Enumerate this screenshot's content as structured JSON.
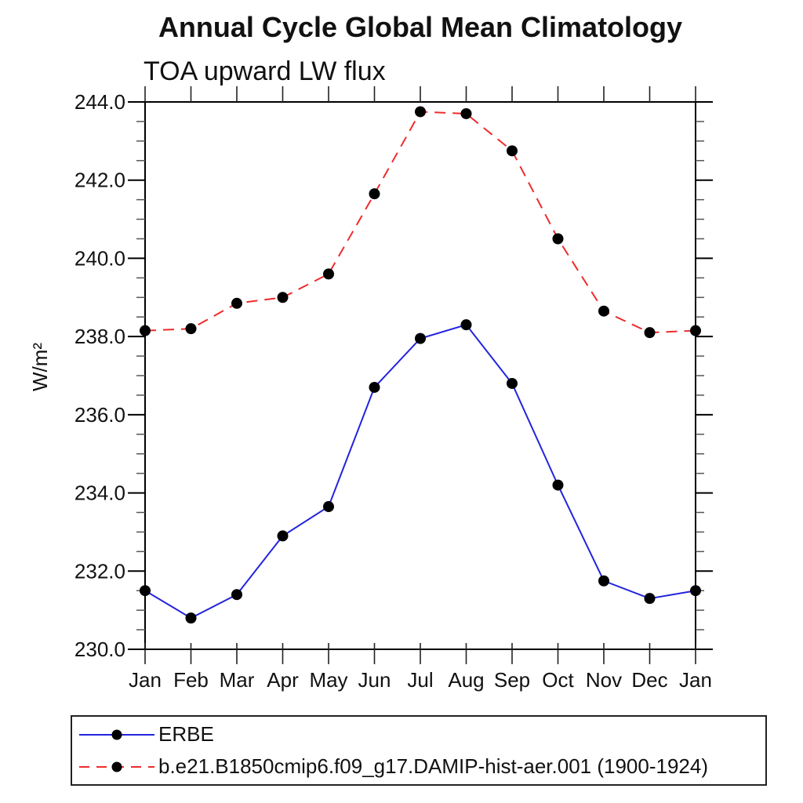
{
  "chart_data": {
    "type": "line",
    "title": "Annual Cycle Global Mean Climatology",
    "subtitle": "TOA upward LW flux",
    "categories": [
      "Jan",
      "Feb",
      "Mar",
      "Apr",
      "May",
      "Jun",
      "Jul",
      "Aug",
      "Sep",
      "Oct",
      "Nov",
      "Dec",
      "Jan"
    ],
    "y_axis": {
      "label": "W/m²",
      "min": 230.0,
      "max": 244.0,
      "major_step": 2.0,
      "minor_step": 0.5,
      "tick_labels": [
        "230.0",
        "232.0",
        "234.0",
        "236.0",
        "238.0",
        "240.0",
        "242.0",
        "244.0"
      ]
    },
    "grid": "off",
    "marker_color": "#000000",
    "series": [
      {
        "name": "ERBE",
        "color": "#2323dd",
        "line_style": "solid",
        "marker": "filled-circle",
        "values": [
          231.5,
          230.8,
          231.4,
          232.9,
          233.65,
          236.7,
          237.95,
          238.3,
          236.8,
          234.2,
          231.75,
          231.3,
          231.5
        ]
      },
      {
        "name": "b.e21.B1850cmip6.f09_g17.DAMIP-hist-aer.001 (1900-1924)",
        "color": "#ee2c2c",
        "line_style": "dashed",
        "marker": "filled-circle",
        "values": [
          238.15,
          238.2,
          238.85,
          239.0,
          239.6,
          241.65,
          243.75,
          243.7,
          242.75,
          240.5,
          238.65,
          238.1,
          238.15
        ]
      }
    ],
    "legend_position": "bottom-left-box"
  }
}
